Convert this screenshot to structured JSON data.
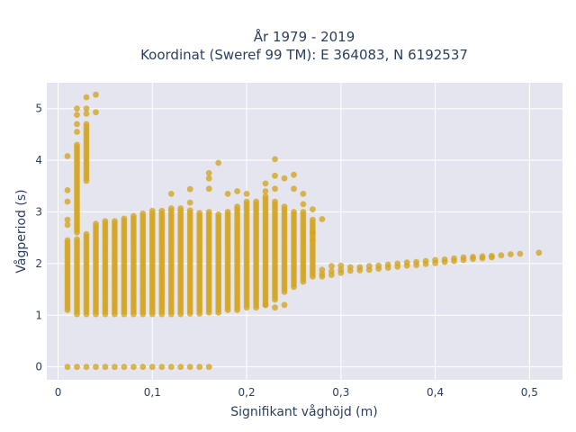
{
  "chart_data": {
    "type": "scatter",
    "title_lines": [
      "År 1979 - 2019",
      "Koordinat (Sweref 99 TM): E 364083, N 6192537"
    ],
    "xlabel": "Signifikant våghöjd (m)",
    "ylabel": "Vågperiod (s)",
    "xlim": [
      -0.012,
      0.535
    ],
    "ylim": [
      -0.25,
      5.5
    ],
    "x_ticks": [
      0,
      0.1,
      0.2,
      0.3,
      0.4,
      0.5
    ],
    "x_tick_labels": [
      "0",
      "0,1",
      "0,2",
      "0,3",
      "0,4",
      "0,5"
    ],
    "y_ticks": [
      0,
      1,
      2,
      3,
      4,
      5
    ],
    "y_tick_labels": [
      "0",
      "1",
      "2",
      "3",
      "4",
      "5"
    ],
    "grid": true,
    "colors": {
      "marker": "#d4a520",
      "plot_bg": "#e5e5f0",
      "grid": "#ffffff",
      "text": "#2a3f5f"
    },
    "series": [
      {
        "marker_color": "#d4a520",
        "vertical_ranges": [
          {
            "x": 0.01,
            "y_min": 1.1,
            "y_max": 2.4
          },
          {
            "x": 0.02,
            "y_min": 1.02,
            "y_max": 2.5
          },
          {
            "x": 0.02,
            "y_min": 2.6,
            "y_max": 4.3
          },
          {
            "x": 0.03,
            "y_min": 1.02,
            "y_max": 2.6
          },
          {
            "x": 0.03,
            "y_min": 3.6,
            "y_max": 4.7
          },
          {
            "x": 0.04,
            "y_min": 1.02,
            "y_max": 2.8
          },
          {
            "x": 0.05,
            "y_min": 1.02,
            "y_max": 2.82
          },
          {
            "x": 0.06,
            "y_min": 1.02,
            "y_max": 2.85
          },
          {
            "x": 0.07,
            "y_min": 1.02,
            "y_max": 2.9
          },
          {
            "x": 0.08,
            "y_min": 1.02,
            "y_max": 2.95
          },
          {
            "x": 0.09,
            "y_min": 1.02,
            "y_max": 3.0
          },
          {
            "x": 0.1,
            "y_min": 1.02,
            "y_max": 3.05
          },
          {
            "x": 0.11,
            "y_min": 1.02,
            "y_max": 3.05
          },
          {
            "x": 0.12,
            "y_min": 1.02,
            "y_max": 3.1
          },
          {
            "x": 0.13,
            "y_min": 1.02,
            "y_max": 3.1
          },
          {
            "x": 0.14,
            "y_min": 1.03,
            "y_max": 3.05
          },
          {
            "x": 0.15,
            "y_min": 1.03,
            "y_max": 3.0
          },
          {
            "x": 0.16,
            "y_min": 1.05,
            "y_max": 3.0
          },
          {
            "x": 0.17,
            "y_min": 1.05,
            "y_max": 2.95
          },
          {
            "x": 0.18,
            "y_min": 1.1,
            "y_max": 3.0
          },
          {
            "x": 0.19,
            "y_min": 1.1,
            "y_max": 3.1
          },
          {
            "x": 0.2,
            "y_min": 1.15,
            "y_max": 3.2
          },
          {
            "x": 0.21,
            "y_min": 1.15,
            "y_max": 3.2
          },
          {
            "x": 0.22,
            "y_min": 1.2,
            "y_max": 3.3
          },
          {
            "x": 0.23,
            "y_min": 1.3,
            "y_max": 3.2
          },
          {
            "x": 0.24,
            "y_min": 1.45,
            "y_max": 3.1
          },
          {
            "x": 0.25,
            "y_min": 1.55,
            "y_max": 3.0
          },
          {
            "x": 0.26,
            "y_min": 1.65,
            "y_max": 3.0
          },
          {
            "x": 0.27,
            "y_min": 1.75,
            "y_max": 2.85
          }
        ],
        "points": [
          {
            "x": 0.01,
            "y": 0
          },
          {
            "x": 0.02,
            "y": 0
          },
          {
            "x": 0.03,
            "y": 0
          },
          {
            "x": 0.04,
            "y": 0
          },
          {
            "x": 0.05,
            "y": 0
          },
          {
            "x": 0.06,
            "y": 0
          },
          {
            "x": 0.07,
            "y": 0
          },
          {
            "x": 0.08,
            "y": 0
          },
          {
            "x": 0.09,
            "y": 0
          },
          {
            "x": 0.1,
            "y": 0
          },
          {
            "x": 0.11,
            "y": 0
          },
          {
            "x": 0.12,
            "y": 0
          },
          {
            "x": 0.13,
            "y": 0
          },
          {
            "x": 0.14,
            "y": 0
          },
          {
            "x": 0.15,
            "y": 0
          },
          {
            "x": 0.16,
            "y": 0
          },
          {
            "x": 0.01,
            "y": 4.08
          },
          {
            "x": 0.01,
            "y": 3.42
          },
          {
            "x": 0.01,
            "y": 3.2
          },
          {
            "x": 0.01,
            "y": 2.85
          },
          {
            "x": 0.01,
            "y": 2.75
          },
          {
            "x": 0.01,
            "y": 2.45
          },
          {
            "x": 0.02,
            "y": 5.0
          },
          {
            "x": 0.02,
            "y": 4.88
          },
          {
            "x": 0.02,
            "y": 4.7
          },
          {
            "x": 0.02,
            "y": 4.55
          },
          {
            "x": 0.03,
            "y": 5.22
          },
          {
            "x": 0.03,
            "y": 5.0
          },
          {
            "x": 0.03,
            "y": 4.9
          },
          {
            "x": 0.04,
            "y": 5.27
          },
          {
            "x": 0.04,
            "y": 4.93
          },
          {
            "x": 0.12,
            "y": 3.35
          },
          {
            "x": 0.14,
            "y": 3.44
          },
          {
            "x": 0.14,
            "y": 3.18
          },
          {
            "x": 0.16,
            "y": 3.75
          },
          {
            "x": 0.16,
            "y": 3.65
          },
          {
            "x": 0.16,
            "y": 3.45
          },
          {
            "x": 0.17,
            "y": 3.95
          },
          {
            "x": 0.18,
            "y": 3.35
          },
          {
            "x": 0.19,
            "y": 3.4
          },
          {
            "x": 0.2,
            "y": 3.35
          },
          {
            "x": 0.22,
            "y": 3.55
          },
          {
            "x": 0.22,
            "y": 3.4
          },
          {
            "x": 0.23,
            "y": 4.02
          },
          {
            "x": 0.23,
            "y": 3.7
          },
          {
            "x": 0.23,
            "y": 3.45
          },
          {
            "x": 0.24,
            "y": 3.65
          },
          {
            "x": 0.25,
            "y": 3.72
          },
          {
            "x": 0.25,
            "y": 3.45
          },
          {
            "x": 0.26,
            "y": 3.35
          },
          {
            "x": 0.26,
            "y": 3.15
          },
          {
            "x": 0.27,
            "y": 3.05
          },
          {
            "x": 0.28,
            "y": 2.86
          },
          {
            "x": 0.27,
            "y": 2.6
          },
          {
            "x": 0.27,
            "y": 2.45
          },
          {
            "x": 0.24,
            "y": 1.2
          },
          {
            "x": 0.23,
            "y": 1.15
          },
          {
            "x": 0.22,
            "y": 1.2
          },
          {
            "x": 0.28,
            "y": 1.88
          },
          {
            "x": 0.28,
            "y": 1.8
          },
          {
            "x": 0.28,
            "y": 1.75
          },
          {
            "x": 0.29,
            "y": 1.95
          },
          {
            "x": 0.29,
            "y": 1.85
          },
          {
            "x": 0.29,
            "y": 1.78
          },
          {
            "x": 0.3,
            "y": 1.96
          },
          {
            "x": 0.3,
            "y": 1.88
          },
          {
            "x": 0.3,
            "y": 1.82
          },
          {
            "x": 0.31,
            "y": 1.93
          },
          {
            "x": 0.31,
            "y": 1.86
          },
          {
            "x": 0.32,
            "y": 1.93
          },
          {
            "x": 0.32,
            "y": 1.87
          },
          {
            "x": 0.33,
            "y": 1.95
          },
          {
            "x": 0.33,
            "y": 1.88
          },
          {
            "x": 0.34,
            "y": 1.96
          },
          {
            "x": 0.34,
            "y": 1.9
          },
          {
            "x": 0.35,
            "y": 1.98
          },
          {
            "x": 0.35,
            "y": 1.92
          },
          {
            "x": 0.36,
            "y": 2.0
          },
          {
            "x": 0.36,
            "y": 1.94
          },
          {
            "x": 0.37,
            "y": 2.02
          },
          {
            "x": 0.37,
            "y": 1.96
          },
          {
            "x": 0.38,
            "y": 2.03
          },
          {
            "x": 0.38,
            "y": 1.97
          },
          {
            "x": 0.39,
            "y": 2.05
          },
          {
            "x": 0.39,
            "y": 1.99
          },
          {
            "x": 0.4,
            "y": 2.07
          },
          {
            "x": 0.4,
            "y": 2.01
          },
          {
            "x": 0.41,
            "y": 2.08
          },
          {
            "x": 0.41,
            "y": 2.03
          },
          {
            "x": 0.42,
            "y": 2.1
          },
          {
            "x": 0.42,
            "y": 2.05
          },
          {
            "x": 0.43,
            "y": 2.12
          },
          {
            "x": 0.43,
            "y": 2.07
          },
          {
            "x": 0.44,
            "y": 2.13
          },
          {
            "x": 0.44,
            "y": 2.09
          },
          {
            "x": 0.45,
            "y": 2.14
          },
          {
            "x": 0.45,
            "y": 2.1
          },
          {
            "x": 0.46,
            "y": 2.15
          },
          {
            "x": 0.46,
            "y": 2.12
          },
          {
            "x": 0.47,
            "y": 2.16
          },
          {
            "x": 0.48,
            "y": 2.18
          },
          {
            "x": 0.49,
            "y": 2.19
          },
          {
            "x": 0.51,
            "y": 2.21
          }
        ]
      }
    ]
  }
}
